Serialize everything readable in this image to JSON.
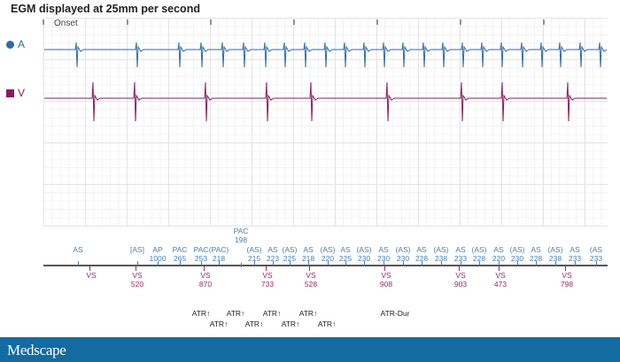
{
  "title": "EGM displayed at 25mm per second",
  "onset_label": "Onset",
  "channels": {
    "a": {
      "label": "A",
      "color": "#2f6ba8"
    },
    "v": {
      "label": "V",
      "color": "#8c1b5e"
    }
  },
  "atrial_markers": [
    {
      "label": "AS",
      "value": ""
    },
    {
      "label": "[AS]",
      "value": ""
    },
    {
      "label": "AP",
      "value": "1000"
    },
    {
      "label": "PAC",
      "value": "265"
    },
    {
      "label": "PAC",
      "value": "253"
    },
    {
      "label": "(PAC)",
      "value": "218"
    },
    {
      "label": "PAC",
      "value": "198"
    },
    {
      "label": "(AS)",
      "value": "215"
    },
    {
      "label": "AS",
      "value": "223"
    },
    {
      "label": "(AS)",
      "value": "225"
    },
    {
      "label": "AS",
      "value": "218"
    },
    {
      "label": "(AS)",
      "value": "220"
    },
    {
      "label": "AS",
      "value": "225"
    },
    {
      "label": "(AS)",
      "value": "230"
    },
    {
      "label": "AS",
      "value": "230"
    },
    {
      "label": "(AS)",
      "value": "230"
    },
    {
      "label": "AS",
      "value": "228"
    },
    {
      "label": "(AS)",
      "value": "238"
    },
    {
      "label": "AS",
      "value": "233"
    },
    {
      "label": "(AS)",
      "value": "228"
    },
    {
      "label": "AS",
      "value": "220"
    },
    {
      "label": "(AS)",
      "value": "230"
    },
    {
      "label": "AS",
      "value": "228"
    },
    {
      "label": "(AS)",
      "value": "238"
    },
    {
      "label": "AS",
      "value": "233"
    },
    {
      "label": "(AS",
      "value": "233"
    }
  ],
  "ventricular_markers": [
    {
      "label": "VS",
      "value": ""
    },
    {
      "label": "VS",
      "value": "520"
    },
    {
      "label": "VS",
      "value": "870"
    },
    {
      "label": "VS",
      "value": "733"
    },
    {
      "label": "VS",
      "value": "528"
    },
    {
      "label": "VS",
      "value": "908"
    },
    {
      "label": "VS",
      "value": "903"
    },
    {
      "label": "VS",
      "value": "473"
    },
    {
      "label": "VS",
      "value": "798"
    }
  ],
  "atr_events": [
    "ATR↑",
    "ATR↑",
    "ATR↑",
    "ATR↑",
    "ATR↑",
    "ATR↑",
    "ATR↑",
    "ATR↑",
    "ATR-Dur"
  ],
  "footer": {
    "logo": "Medscape",
    "color": "#136ba1"
  }
}
